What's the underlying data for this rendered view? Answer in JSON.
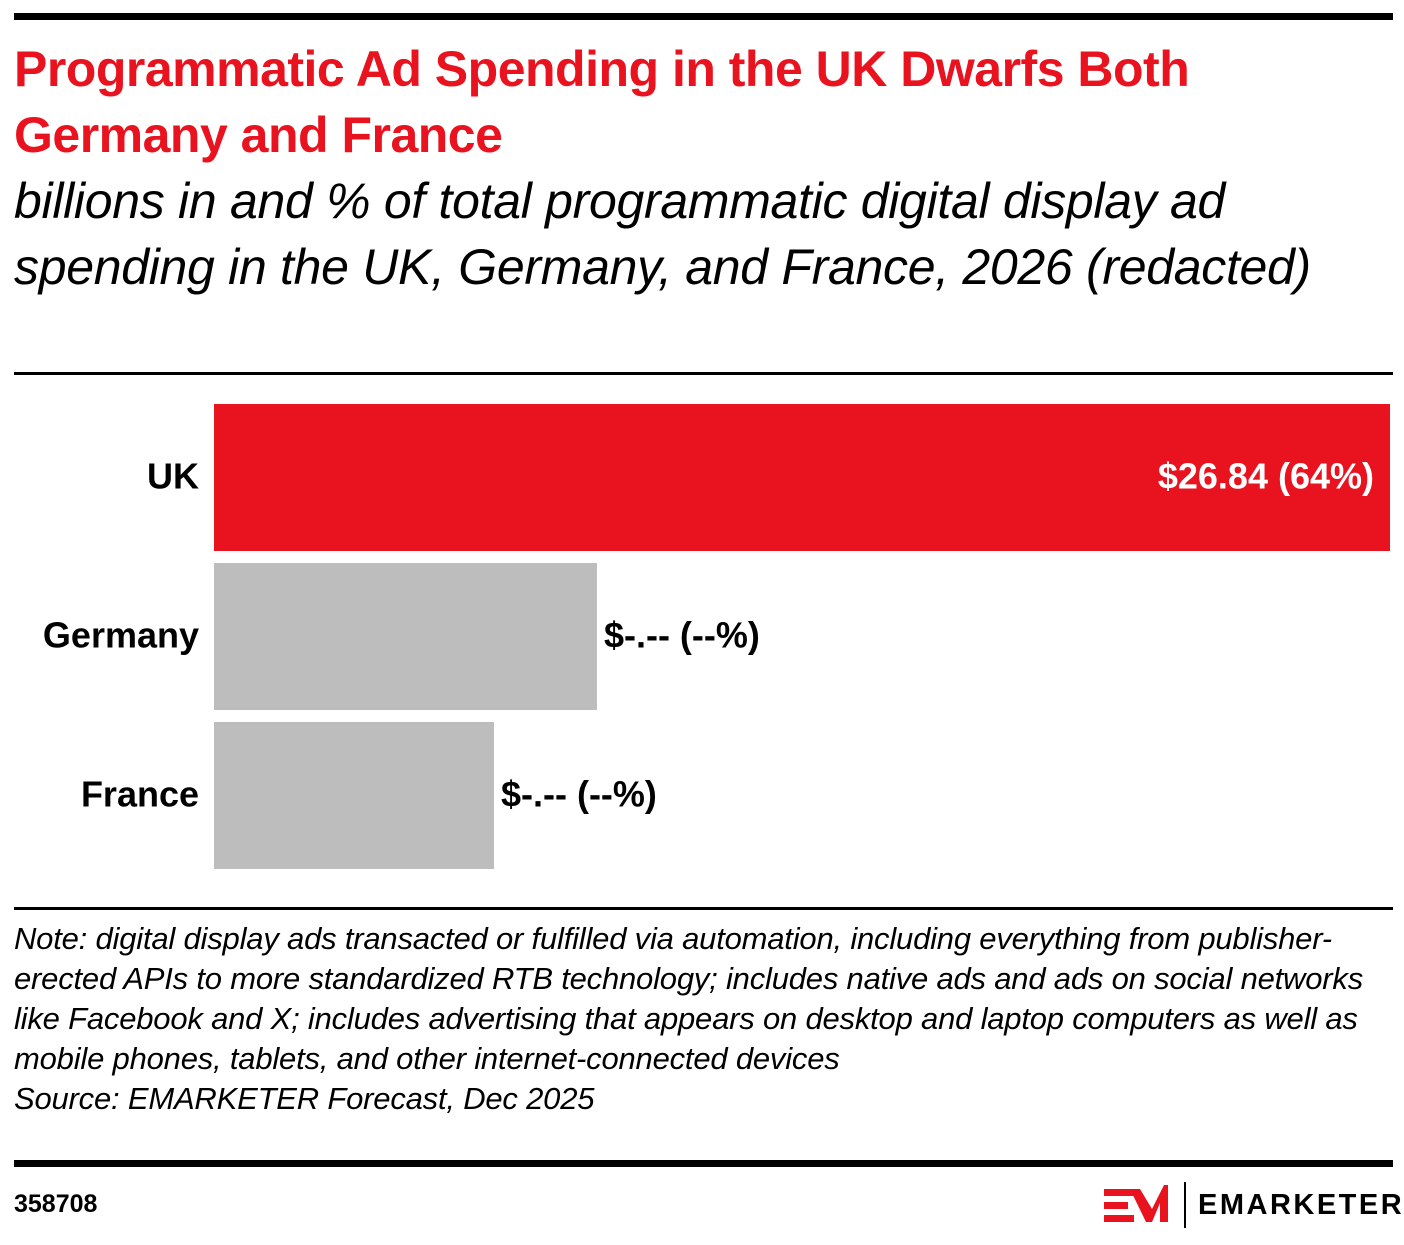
{
  "title": "Programmatic Ad Spending in the UK Dwarfs Both Germany and France",
  "subtitle": "billions in and % of total programmatic digital display ad spending in the UK, Germany, and France, 2026 (redacted)",
  "chart_data": {
    "type": "bar",
    "orientation": "horizontal",
    "title": "Programmatic Ad Spending in the UK Dwarfs Both Germany and France",
    "subtitle": "billions in and % of total programmatic digital display ad spending in the UK, Germany, and France, 2026 (redacted)",
    "categories": [
      "UK",
      "Germany",
      "France"
    ],
    "values": [
      26.84,
      8.74,
      6.39
    ],
    "data_labels": [
      "$26.84 (64%)",
      "$-.-- (--%)",
      "$-.-- (--%)"
    ],
    "colors": [
      "#e8131f",
      "#bdbdbd",
      "#bdbdbd"
    ],
    "xlim": [
      0,
      26.84
    ],
    "grid": false,
    "legend": "none"
  },
  "note": "Note: digital display ads transacted or fulfilled via automation, including everything from publisher-erected APIs to more standardized RTB technology; includes native ads and ads on social networks like Facebook and X; includes advertising that appears on desktop and laptop computers as well as mobile phones, tablets, and other internet-connected devices",
  "source": "Source: EMARKETER Forecast, Dec 2025",
  "chart_id": "358708",
  "logo": {
    "mark": "EM",
    "wordmark": "EMARKETER",
    "color": "#e8131f"
  }
}
